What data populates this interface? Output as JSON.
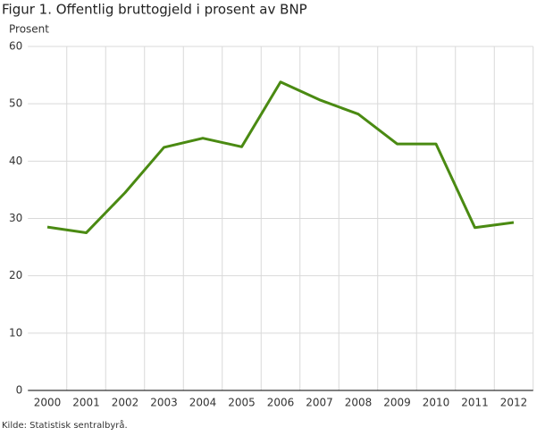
{
  "chart_data": {
    "type": "line",
    "title": "Figur 1. Offentlig bruttogjeld i prosent av BNP",
    "y_label": "Prosent",
    "source": "Kilde: Statistisk sentralbyrå.",
    "categories": [
      "2000",
      "2001",
      "2002",
      "2003",
      "2004",
      "2005",
      "2006",
      "2007",
      "2008",
      "2009",
      "2010",
      "2011",
      "2012"
    ],
    "series": [
      {
        "name": "Offentlig bruttogjeld",
        "color": "#4a8a12",
        "values": [
          28.5,
          27.5,
          34.5,
          42.4,
          44.0,
          42.5,
          53.8,
          50.7,
          48.2,
          43.0,
          43.0,
          28.4,
          29.3
        ]
      }
    ],
    "ylim": [
      0,
      60
    ],
    "yticks": [
      0,
      10,
      20,
      30,
      40,
      50,
      60
    ],
    "grid": true,
    "legend": false
  }
}
